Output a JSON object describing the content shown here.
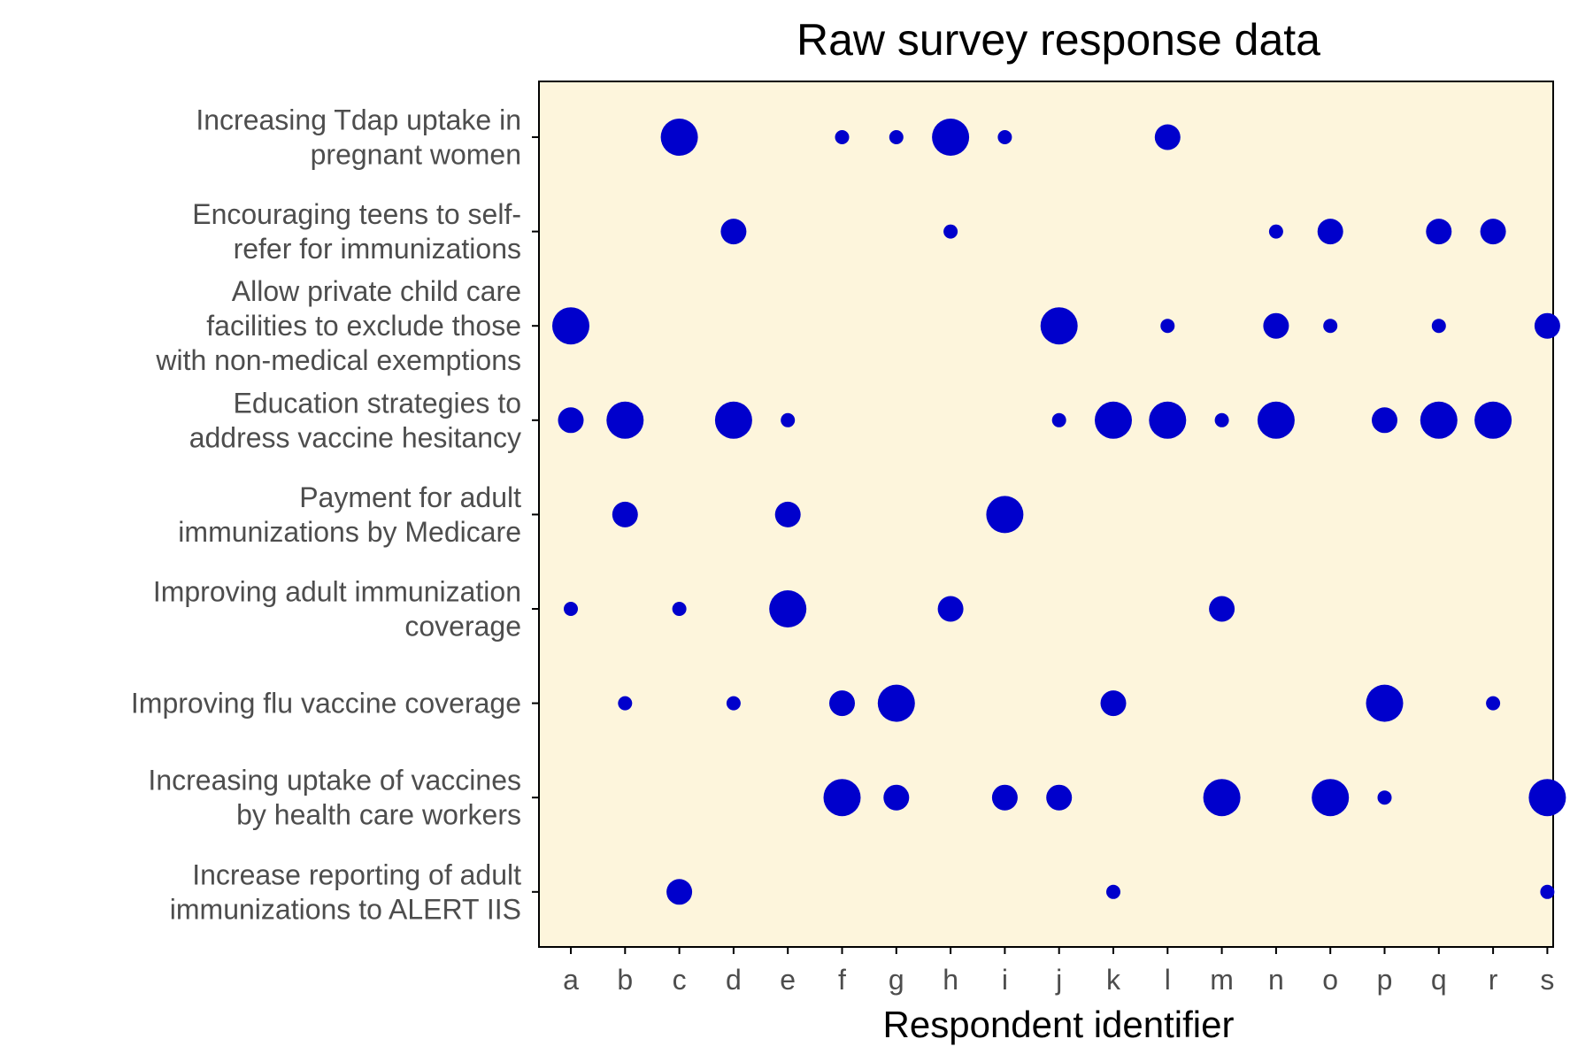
{
  "chart_data": {
    "type": "scatter",
    "title": "Raw survey response data",
    "xlabel": "Respondent identifier",
    "ylabel": "",
    "x_categories": [
      "a",
      "b",
      "c",
      "d",
      "e",
      "f",
      "g",
      "h",
      "i",
      "j",
      "k",
      "l",
      "m",
      "n",
      "o",
      "p",
      "q",
      "r",
      "s"
    ],
    "y_categories": [
      {
        "lines": [
          "Increasing Tdap uptake in",
          "pregnant women"
        ]
      },
      {
        "lines": [
          "Encouraging teens to self-",
          "refer for immunizations"
        ]
      },
      {
        "lines": [
          "Allow private child care",
          "facilities to exclude those",
          "with non-medical exemptions"
        ]
      },
      {
        "lines": [
          "Education strategies to",
          "address vaccine hesitancy"
        ]
      },
      {
        "lines": [
          "Payment for adult",
          "immunizations by Medicare"
        ]
      },
      {
        "lines": [
          "Improving adult immunization",
          "coverage"
        ]
      },
      {
        "lines": [
          "Improving flu vaccine coverage"
        ]
      },
      {
        "lines": [
          "Increasing uptake of vaccines",
          "by health care workers"
        ]
      },
      {
        "lines": [
          "Increase reporting of adult",
          "immunizations to ALERT IIS"
        ]
      }
    ],
    "size_scale": [
      1,
      4
    ],
    "points": [
      {
        "x": "c",
        "y": 0,
        "size": 4
      },
      {
        "x": "f",
        "y": 0,
        "size": 1
      },
      {
        "x": "g",
        "y": 0,
        "size": 1
      },
      {
        "x": "h",
        "y": 0,
        "size": 4
      },
      {
        "x": "i",
        "y": 0,
        "size": 1
      },
      {
        "x": "l",
        "y": 0,
        "size": 2.5
      },
      {
        "x": "d",
        "y": 1,
        "size": 2.5
      },
      {
        "x": "h",
        "y": 1,
        "size": 1
      },
      {
        "x": "n",
        "y": 1,
        "size": 1
      },
      {
        "x": "o",
        "y": 1,
        "size": 2.5
      },
      {
        "x": "q",
        "y": 1,
        "size": 2.5
      },
      {
        "x": "r",
        "y": 1,
        "size": 2.5
      },
      {
        "x": "a",
        "y": 2,
        "size": 4
      },
      {
        "x": "j",
        "y": 2,
        "size": 4
      },
      {
        "x": "l",
        "y": 2,
        "size": 1
      },
      {
        "x": "n",
        "y": 2,
        "size": 2.5
      },
      {
        "x": "o",
        "y": 2,
        "size": 1
      },
      {
        "x": "q",
        "y": 2,
        "size": 1
      },
      {
        "x": "s",
        "y": 2,
        "size": 2.5
      },
      {
        "x": "a",
        "y": 3,
        "size": 2.5
      },
      {
        "x": "b",
        "y": 3,
        "size": 4
      },
      {
        "x": "d",
        "y": 3,
        "size": 4
      },
      {
        "x": "e",
        "y": 3,
        "size": 1
      },
      {
        "x": "j",
        "y": 3,
        "size": 1
      },
      {
        "x": "k",
        "y": 3,
        "size": 4
      },
      {
        "x": "l",
        "y": 3,
        "size": 4
      },
      {
        "x": "m",
        "y": 3,
        "size": 1
      },
      {
        "x": "n",
        "y": 3,
        "size": 4
      },
      {
        "x": "p",
        "y": 3,
        "size": 2.5
      },
      {
        "x": "q",
        "y": 3,
        "size": 4
      },
      {
        "x": "r",
        "y": 3,
        "size": 4
      },
      {
        "x": "b",
        "y": 4,
        "size": 2.5
      },
      {
        "x": "e",
        "y": 4,
        "size": 2.5
      },
      {
        "x": "i",
        "y": 4,
        "size": 4
      },
      {
        "x": "a",
        "y": 5,
        "size": 1
      },
      {
        "x": "c",
        "y": 5,
        "size": 1
      },
      {
        "x": "e",
        "y": 5,
        "size": 4
      },
      {
        "x": "h",
        "y": 5,
        "size": 2.5
      },
      {
        "x": "m",
        "y": 5,
        "size": 2.5
      },
      {
        "x": "b",
        "y": 6,
        "size": 1
      },
      {
        "x": "d",
        "y": 6,
        "size": 1
      },
      {
        "x": "f",
        "y": 6,
        "size": 2.5
      },
      {
        "x": "g",
        "y": 6,
        "size": 4
      },
      {
        "x": "k",
        "y": 6,
        "size": 2.5
      },
      {
        "x": "p",
        "y": 6,
        "size": 4
      },
      {
        "x": "r",
        "y": 6,
        "size": 1
      },
      {
        "x": "f",
        "y": 7,
        "size": 4
      },
      {
        "x": "g",
        "y": 7,
        "size": 2.5
      },
      {
        "x": "i",
        "y": 7,
        "size": 2.5
      },
      {
        "x": "j",
        "y": 7,
        "size": 2.5
      },
      {
        "x": "m",
        "y": 7,
        "size": 4
      },
      {
        "x": "o",
        "y": 7,
        "size": 4
      },
      {
        "x": "p",
        "y": 7,
        "size": 1
      },
      {
        "x": "s",
        "y": 7,
        "size": 4
      },
      {
        "x": "c",
        "y": 8,
        "size": 2.5
      },
      {
        "x": "k",
        "y": 8,
        "size": 1
      },
      {
        "x": "s",
        "y": 8,
        "size": 1
      }
    ],
    "colors": {
      "point": "#0000cc",
      "panel_bg": "#fdf5dc",
      "axis": "#000000",
      "tick_text": "#4d4d4d"
    },
    "grid": false,
    "legend": "none"
  }
}
